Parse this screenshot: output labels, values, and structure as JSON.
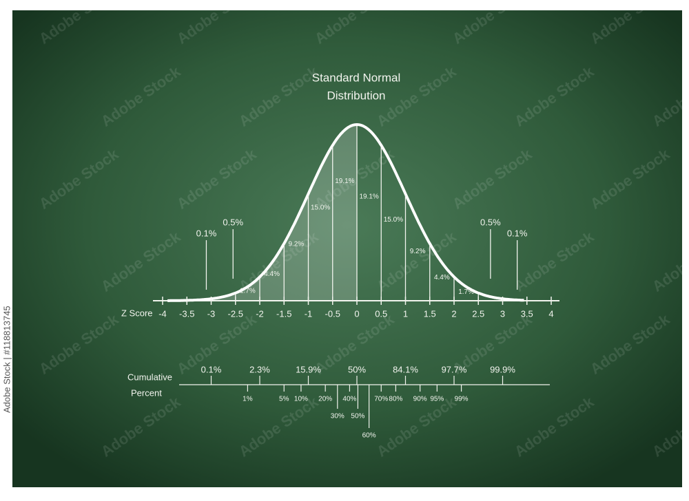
{
  "title": {
    "line1": "Standard Normal",
    "line2": "Distribution"
  },
  "z_axis": {
    "label": "Z Score",
    "ticks": [
      -4,
      -3.5,
      -3,
      -2.5,
      -2,
      -1.5,
      -1,
      -0.5,
      0,
      0.5,
      1,
      1.5,
      2,
      2.5,
      3,
      3.5,
      4
    ]
  },
  "segments": [
    {
      "z": [
        -2.5,
        -2
      ],
      "label": "1.7%"
    },
    {
      "z": [
        -2,
        -1.5
      ],
      "label": "4.4%"
    },
    {
      "z": [
        -1.5,
        -1
      ],
      "label": "9.2%"
    },
    {
      "z": [
        -1,
        -0.5
      ],
      "label": "15.0%"
    },
    {
      "z": [
        -0.5,
        0
      ],
      "label": "19.1%"
    },
    {
      "z": [
        0,
        0.5
      ],
      "label": "19.1%"
    },
    {
      "z": [
        0.5,
        1
      ],
      "label": "15.0%"
    },
    {
      "z": [
        1,
        1.5
      ],
      "label": "9.2%"
    },
    {
      "z": [
        1.5,
        2
      ],
      "label": "4.4%"
    },
    {
      "z": [
        2,
        2.5
      ],
      "label": "1.7%"
    }
  ],
  "tails": [
    {
      "z": -3.1,
      "label": "0.1%"
    },
    {
      "z": -2.55,
      "label": "0.5%"
    },
    {
      "z": 2.75,
      "label": "0.5%"
    },
    {
      "z": 3.3,
      "label": "0.1%"
    }
  ],
  "cumulative": {
    "label_line1": "Cumulative",
    "label_line2": "Percent",
    "upper": [
      {
        "z": -3,
        "label": "0.1%"
      },
      {
        "z": -2,
        "label": "2.3%"
      },
      {
        "z": -1,
        "label": "15.9%"
      },
      {
        "z": 0,
        "label": "50%"
      },
      {
        "z": 1,
        "label": "84.1%"
      },
      {
        "z": 2,
        "label": "97.7%"
      },
      {
        "z": 3,
        "label": "99.9%"
      }
    ],
    "lower": [
      {
        "z": -2.25,
        "label": "1%"
      },
      {
        "z": -1.5,
        "label": "5%"
      },
      {
        "z": -1.15,
        "label": "10%"
      },
      {
        "z": -0.65,
        "label": "20%"
      },
      {
        "z": -0.4,
        "label": "30%"
      },
      {
        "z": -0.15,
        "label": "40%"
      },
      {
        "z": 0.02,
        "label": "50%"
      },
      {
        "z": 0.25,
        "label": "60%"
      },
      {
        "z": 0.5,
        "label": "70%"
      },
      {
        "z": 0.8,
        "label": "80%"
      },
      {
        "z": 1.3,
        "label": "90%"
      },
      {
        "z": 1.65,
        "label": "95%"
      },
      {
        "z": 2.15,
        "label": "99%"
      }
    ]
  },
  "watermark": "Adobe Stock",
  "side_text": "Adobe Stock | #118813745"
}
